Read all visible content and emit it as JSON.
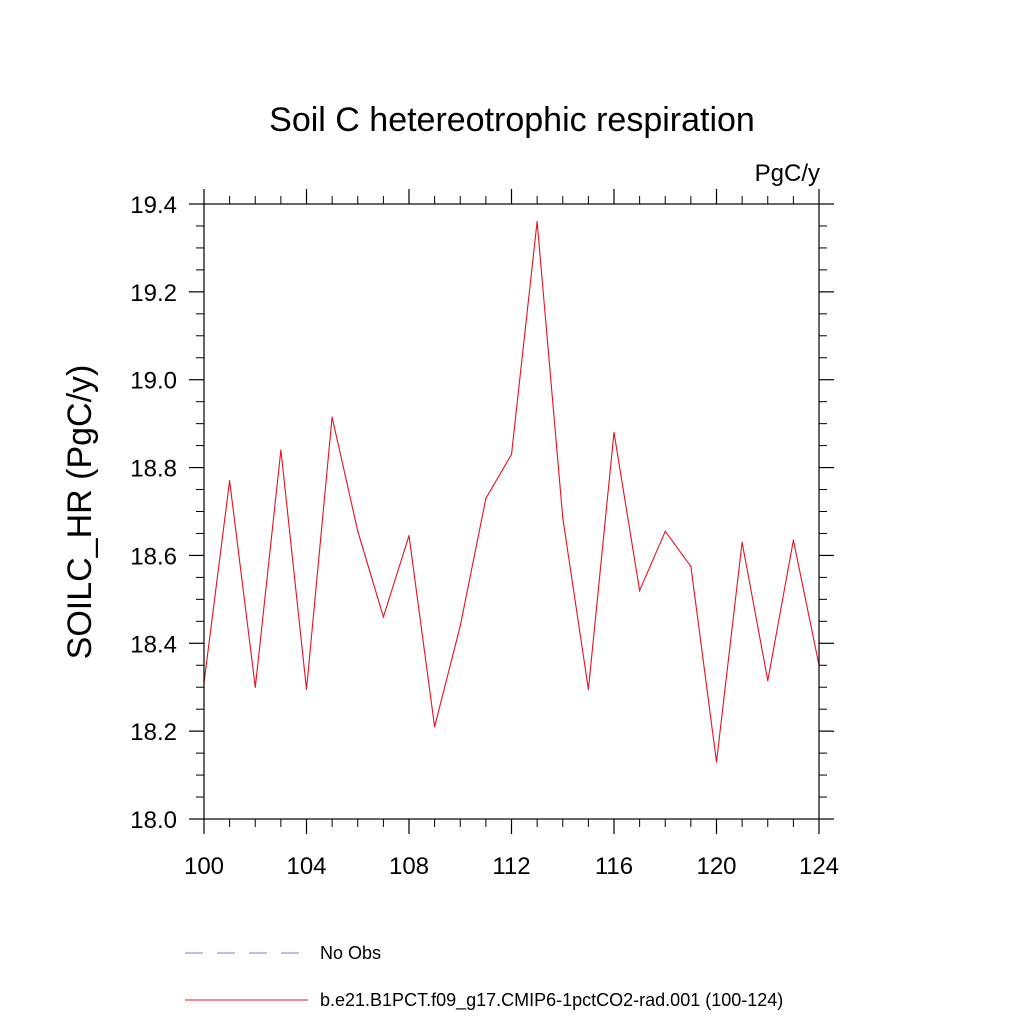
{
  "chart_data": {
    "type": "line",
    "title": "Soil C hetereotrophic respiration",
    "units": "PgC/y",
    "ylabel": "SOILC_HR  (PgC/y)",
    "xlabel": "",
    "xlim": [
      100,
      124
    ],
    "ylim": [
      18.0,
      19.4
    ],
    "x_ticks": [
      "100",
      "104",
      "108",
      "112",
      "116",
      "120",
      "124"
    ],
    "y_ticks": [
      "18.0",
      "18.2",
      "18.4",
      "18.6",
      "18.8",
      "19.0",
      "19.2",
      "19.4"
    ],
    "grid": false,
    "legend_position": "bottom",
    "series": [
      {
        "name": "b.e21.B1PCT.f09_g17.CMIP6-1pctCO2-rad.001 (100-124)",
        "color": "#e8101e",
        "x": [
          100,
          101,
          102,
          103,
          104,
          105,
          106,
          107,
          108,
          109,
          110,
          111,
          112,
          113,
          114,
          115,
          116,
          117,
          118,
          119,
          120,
          121,
          122,
          123,
          124
        ],
        "values": [
          18.31,
          18.77,
          18.3,
          18.84,
          18.295,
          18.915,
          18.655,
          18.46,
          18.645,
          18.21,
          18.44,
          18.73,
          18.83,
          19.36,
          18.685,
          18.295,
          18.88,
          18.52,
          18.655,
          18.575,
          18.13,
          18.63,
          18.315,
          18.635,
          18.35
        ]
      }
    ],
    "legend": [
      {
        "label": "No Obs",
        "color": "#7b7bd6",
        "style": "dashed"
      },
      {
        "label": "b.e21.B1PCT.f09_g17.CMIP6-1pctCO2-rad.001 (100-124)",
        "color": "#e8101e",
        "style": "solid"
      }
    ]
  }
}
